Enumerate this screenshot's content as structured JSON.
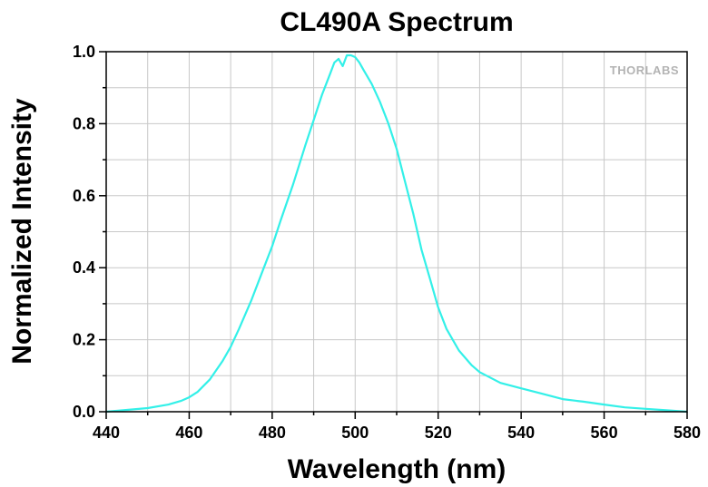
{
  "chart_data": {
    "type": "line",
    "title": "CL490A Spectrum",
    "xlabel": "Wavelength (nm)",
    "ylabel": "Normalized Intensity",
    "xlim": [
      440,
      580
    ],
    "ylim": [
      0,
      1.0
    ],
    "x_ticks": [
      "440",
      "460",
      "480",
      "500",
      "520",
      "540",
      "560",
      "580"
    ],
    "y_ticks": [
      "0.0",
      "0.2",
      "0.4",
      "0.6",
      "0.8",
      "1.0"
    ],
    "grid": true,
    "watermark": "THORLABS",
    "series": [
      {
        "color": "#33f0e8",
        "x": [
          440,
          445,
          450,
          455,
          458,
          460,
          462,
          465,
          468,
          470,
          472,
          475,
          478,
          480,
          482,
          485,
          488,
          490,
          492,
          494,
          495,
          496,
          497,
          498,
          499,
          500,
          501,
          502,
          504,
          506,
          508,
          510,
          512,
          514,
          516,
          518,
          520,
          522,
          525,
          528,
          530,
          535,
          540,
          545,
          550,
          555,
          560,
          565,
          570,
          575,
          580
        ],
        "y": [
          0.0,
          0.005,
          0.01,
          0.02,
          0.03,
          0.04,
          0.055,
          0.09,
          0.14,
          0.18,
          0.23,
          0.31,
          0.4,
          0.46,
          0.53,
          0.63,
          0.74,
          0.81,
          0.88,
          0.94,
          0.97,
          0.98,
          0.96,
          0.99,
          0.99,
          0.985,
          0.97,
          0.95,
          0.91,
          0.86,
          0.8,
          0.73,
          0.64,
          0.55,
          0.45,
          0.37,
          0.29,
          0.23,
          0.17,
          0.13,
          0.11,
          0.08,
          0.065,
          0.05,
          0.035,
          0.028,
          0.02,
          0.012,
          0.008,
          0.004,
          0.0
        ]
      }
    ]
  }
}
